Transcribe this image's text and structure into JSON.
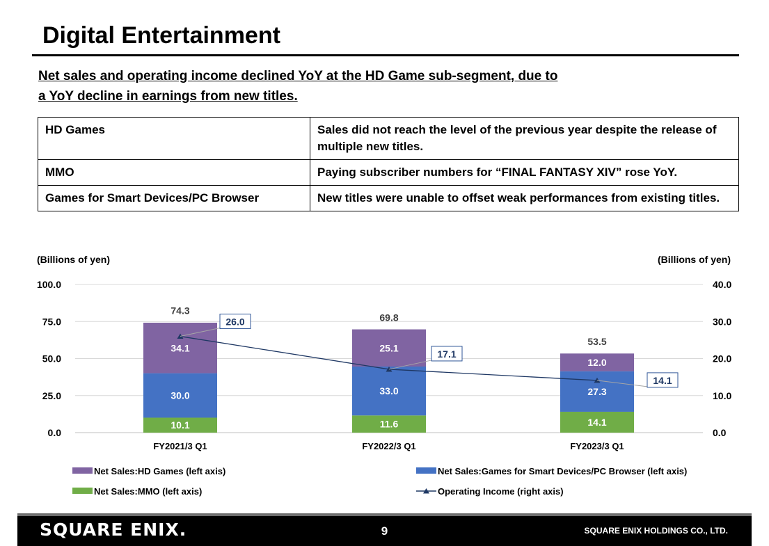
{
  "page": {
    "title": "Digital Entertainment",
    "subtitle_line1": "Net sales and operating income declined YoY at the HD Game sub-segment, due to ",
    "subtitle_line2": "a YoY decline in earnings from new titles."
  },
  "table": {
    "rows": [
      {
        "segment": "HD Games",
        "note": "Sales did not reach the level of the previous year despite the release of multiple new titles."
      },
      {
        "segment": "MMO",
        "note": "Paying subscriber numbers for “FINAL FANTASY XIV” rose YoY."
      },
      {
        "segment": "Games for Smart Devices/PC Browser",
        "note": "New titles were unable to offset weak performances from existing titles."
      }
    ]
  },
  "chart_data": {
    "type": "bar",
    "stacked": true,
    "categories": [
      "FY2021/3 Q1",
      "FY2022/3 Q1",
      "FY2023/3 Q1"
    ],
    "series": [
      {
        "name": "Net Sales:MMO (left axis)",
        "values": [
          10.1,
          11.6,
          14.1
        ],
        "color": "#70ad47",
        "axis": "left"
      },
      {
        "name": "Net Sales:Games for Smart Devices/PC Browser (left axis)",
        "values": [
          30.0,
          33.0,
          27.3
        ],
        "color": "#4472c4",
        "axis": "left"
      },
      {
        "name": "Net Sales:HD Games (left axis)",
        "values": [
          34.1,
          25.1,
          12.0
        ],
        "color": "#8064a2",
        "axis": "left"
      }
    ],
    "totals": [
      74.3,
      69.8,
      53.5
    ],
    "line_series": {
      "name": "Operating Income (right axis)",
      "values": [
        26.0,
        17.1,
        14.1
      ],
      "color": "#1f3864",
      "axis": "right",
      "marker": "triangle"
    },
    "ylabel_left": "(Billions of yen)",
    "ylabel_right": "(Billions of yen)",
    "ylim_left": [
      0,
      100
    ],
    "ylim_right": [
      0,
      40
    ],
    "yticks_left": [
      "0.0",
      "25.0",
      "50.0",
      "75.0",
      "100.0"
    ],
    "yticks_right": [
      "0.0",
      "10.0",
      "20.0",
      "30.0",
      "40.0"
    ],
    "grid": true,
    "legend": [
      {
        "label": "Net Sales:HD Games (left axis)",
        "color": "#8064a2",
        "kind": "box"
      },
      {
        "label": "Net Sales:Games for Smart Devices/PC Browser (left axis)",
        "color": "#4472c4",
        "kind": "box"
      },
      {
        "label": "Net Sales:MMO (left axis)",
        "color": "#70ad47",
        "kind": "box"
      },
      {
        "label": "Operating Income (right axis)",
        "color": "#1f3864",
        "kind": "line"
      }
    ],
    "legend_position": "bottom"
  },
  "footer": {
    "logo": "SQUARE ENIX.",
    "page_number": "9",
    "company": "SQUARE ENIX HOLDINGS CO., LTD."
  }
}
